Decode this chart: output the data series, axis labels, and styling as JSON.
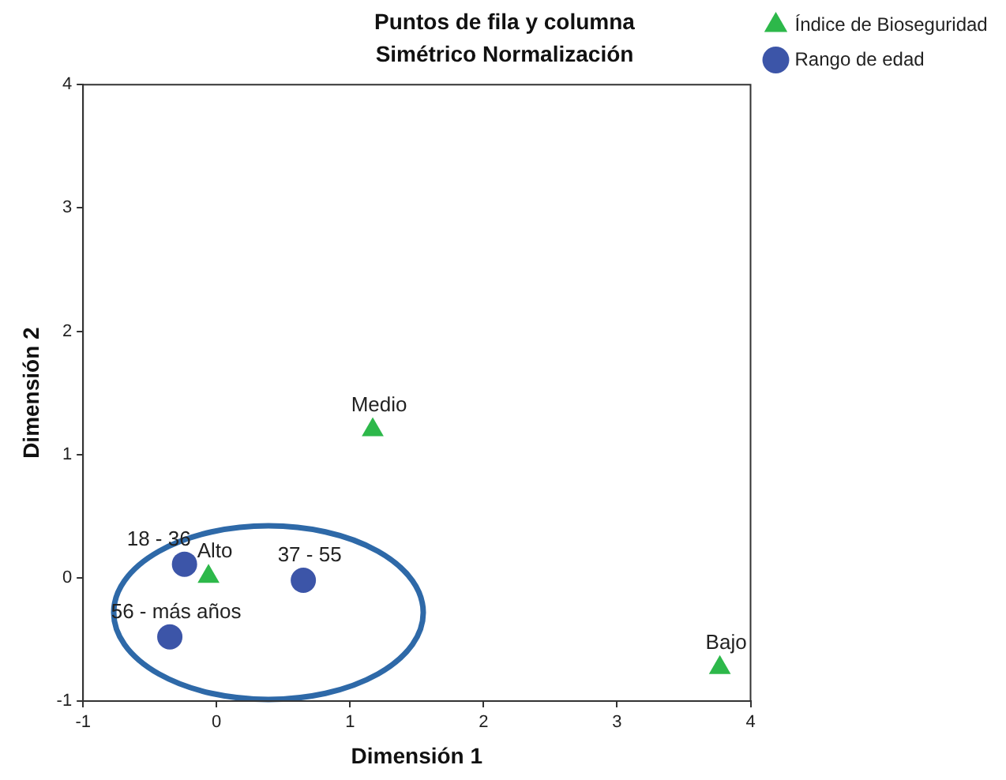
{
  "chart_data": {
    "type": "scatter",
    "title": "Puntos de fila y columna",
    "subtitle": "Simétrico Normalización",
    "xlabel": "Dimensión 1",
    "ylabel": "Dimensión 2",
    "series": [
      {
        "name": "Índice de Bioseguridad",
        "color": "#2db84a",
        "marker": "triangle",
        "x": [
          1.17,
          -0.06,
          3.77
        ],
        "values": [
          1.2,
          0.01,
          -0.73
        ]
      },
      {
        "name": "Rango de edad",
        "color": "#3c55a8",
        "marker": "circle",
        "x": [
          -0.24,
          0.65,
          -0.35
        ],
        "values": [
          0.11,
          -0.02,
          -0.48
        ]
      }
    ],
    "annotations": [
      {
        "text": "Medio",
        "x": 1.17,
        "y": 1.2
      },
      {
        "text": "Alto",
        "x": -0.06,
        "y": 0.01
      },
      {
        "text": "Bajo",
        "x": 3.77,
        "y": -0.73
      },
      {
        "text": "18 - 36",
        "x": -0.24,
        "y": 0.11
      },
      {
        "text": "37 - 55",
        "x": 0.65,
        "y": -0.02
      },
      {
        "text": "56 - más años",
        "x": -0.35,
        "y": -0.48
      }
    ],
    "xlim": [
      -1,
      4
    ],
    "xticks": [
      -1,
      0,
      1,
      2,
      3,
      4
    ],
    "ylim": [
      -1,
      4
    ],
    "yticks": [
      -1,
      0,
      1,
      2,
      3,
      4
    ],
    "grid": false,
    "legend": "top right"
  }
}
